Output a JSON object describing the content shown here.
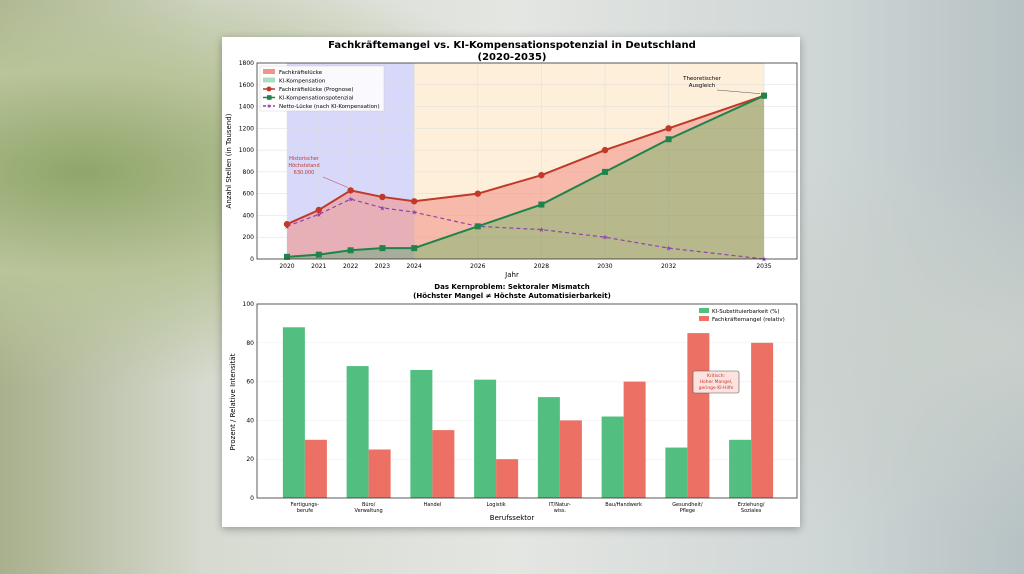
{
  "chart_data": [
    {
      "type": "line",
      "title": "Fachkräftemangel vs. KI-Kompensationspotenzial in Deutschland",
      "subtitle": "(2020-2035)",
      "xlabel": "Jahr",
      "ylabel": "Anzahl Stellen (in Tausend)",
      "ylim": [
        0,
        1800
      ],
      "yticks": [
        0,
        200,
        400,
        600,
        800,
        1000,
        1200,
        1400,
        1600,
        1800
      ],
      "x": [
        2020,
        2021,
        2022,
        2023,
        2024,
        2026,
        2028,
        2030,
        2032,
        2035
      ],
      "grid": true,
      "legend": "top-left",
      "legend_entries": [
        "Fachkräftelücke",
        "KI-Kompensation",
        "Fachkräftelücke (Prognose)",
        "KI-Kompensationspotenzial",
        "Netto-Lücke (nach KI-Kompensation)"
      ],
      "series": [
        {
          "name": "Fachkräftelücke (Prognose)",
          "color": "#c0392b",
          "values": [
            320,
            450,
            630,
            570,
            530,
            600,
            770,
            1000,
            1200,
            1500
          ]
        },
        {
          "name": "KI-Kompensationspotenzial",
          "color": "#1e8449",
          "values": [
            20,
            40,
            80,
            100,
            100,
            300,
            500,
            800,
            1100,
            1500
          ]
        },
        {
          "name": "Netto-Lücke (nach KI-Kompensation)",
          "color": "#8e44ad",
          "values": [
            300,
            410,
            550,
            470,
            430,
            300,
            270,
            200,
            100,
            0
          ]
        }
      ],
      "shaded_regions": [
        {
          "from": 2020,
          "to": 2024,
          "color": "#d8d8fb"
        },
        {
          "from": 2024,
          "to": 2035,
          "color": "#fdefd9"
        }
      ],
      "annotations": [
        {
          "text": "Historischer\nHöchststand\n630.000",
          "x": 2022,
          "y": 630
        },
        {
          "text": "Theoretischer\nAusgleich",
          "x": 2035,
          "y": 1500
        }
      ]
    },
    {
      "type": "bar",
      "title": "Das Kernproblem: Sektoraler Mismatch",
      "subtitle": "(Höchster Mangel ≠ Höchste Automatisierbarkeit)",
      "xlabel": "Berufssektor",
      "ylabel": "Prozent / Relative Intensität",
      "ylim": [
        0,
        100
      ],
      "yticks": [
        0,
        20,
        40,
        60,
        80,
        100
      ],
      "legend": "top-right",
      "categories": [
        "Fertigungs-\nberufe",
        "Büro/\nVerwaltung",
        "Handel",
        "Logistik",
        "IT/Natur-\nwiss.",
        "Bau/Handwerk",
        "Gesundheit/\nPflege",
        "Erziehung/\nSoziales"
      ],
      "series": [
        {
          "name": "KI-Substituierbarkeit (%)",
          "color": "#52be80",
          "values": [
            88,
            68,
            66,
            61,
            52,
            42,
            26,
            30
          ]
        },
        {
          "name": "Fachkräftemangel (relativ)",
          "color": "#ec7063",
          "values": [
            30,
            25,
            35,
            20,
            40,
            60,
            85,
            80
          ]
        }
      ],
      "annotations": [
        {
          "text": "Kritisch:\nHoher Mangel,\ngeringe KI-Hilfe",
          "category": "Gesundheit/\nPflege",
          "y": 60
        }
      ]
    }
  ]
}
